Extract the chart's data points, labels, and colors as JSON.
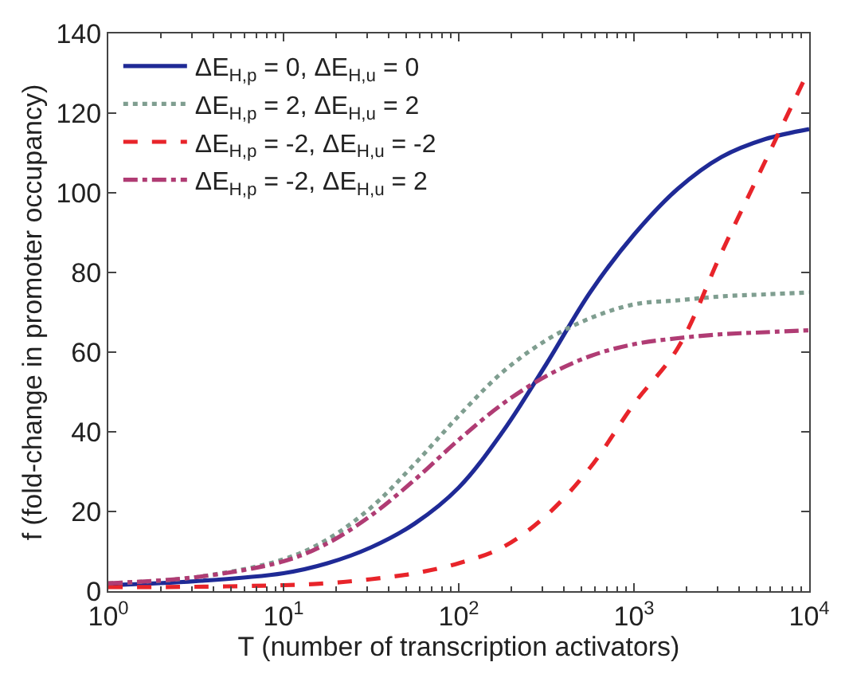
{
  "chart_data": {
    "type": "line",
    "xlabel": "T (number of transcription activators)",
    "ylabel": "f (fold-change in promoter occupancy)",
    "x": [
      1,
      3.16,
      10,
      17.8,
      31.6,
      56.2,
      100,
      178,
      316,
      562,
      1000,
      1778,
      3162,
      5623,
      10000
    ],
    "series": [
      {
        "name": "ΔE$_{H,p}$ = 0, ΔE$_{H,u}$ = 0",
        "color": "#1f2a96",
        "line_style": "solid",
        "values": [
          1.5,
          2.5,
          4.5,
          7,
          11,
          17,
          26,
          40,
          57,
          75,
          89.5,
          101,
          109,
          113.5,
          116
        ]
      },
      {
        "name": "ΔE$_{H,p}$ = 2, ΔE$_{H,u}$ = 2",
        "color": "#7f9e90",
        "line_style": "dotted",
        "values": [
          2,
          3.5,
          8,
          13,
          21,
          32,
          44,
          55,
          63,
          68.5,
          72,
          73,
          74,
          74.5,
          75
        ]
      },
      {
        "name": "ΔE$_{H,p}$ = -2, ΔE$_{H,u}$ = -2",
        "color": "#e8242a",
        "line_style": "dashed",
        "values": [
          1,
          1.1,
          1.5,
          2,
          3,
          4.5,
          7,
          11,
          19,
          31,
          47,
          61,
          85,
          108,
          131
        ]
      },
      {
        "name": "ΔE$_{H,p}$ = -2, ΔE$_{H,u}$ = 2",
        "color": "#b03c74",
        "line_style": "dashdot",
        "values": [
          2,
          3.5,
          7.5,
          12,
          19,
          28,
          38,
          47,
          54,
          59,
          62,
          63.5,
          64.5,
          65,
          65.5
        ]
      }
    ],
    "log": "x",
    "xlim": [
      1,
      10000
    ],
    "xticks": [
      {
        "value": 1,
        "label": "10$^{0}$"
      },
      {
        "value": 10,
        "label": "10$^{1}$"
      },
      {
        "value": 100,
        "label": "10$^{2}$"
      },
      {
        "value": 1000,
        "label": "10$^{3}$"
      },
      {
        "value": 10000,
        "label": "10$^{4}$"
      }
    ],
    "ylim": [
      0,
      140
    ],
    "yticks": [
      0,
      20,
      40,
      60,
      80,
      100,
      120,
      140
    ],
    "legend": "top left",
    "marker": "none"
  }
}
